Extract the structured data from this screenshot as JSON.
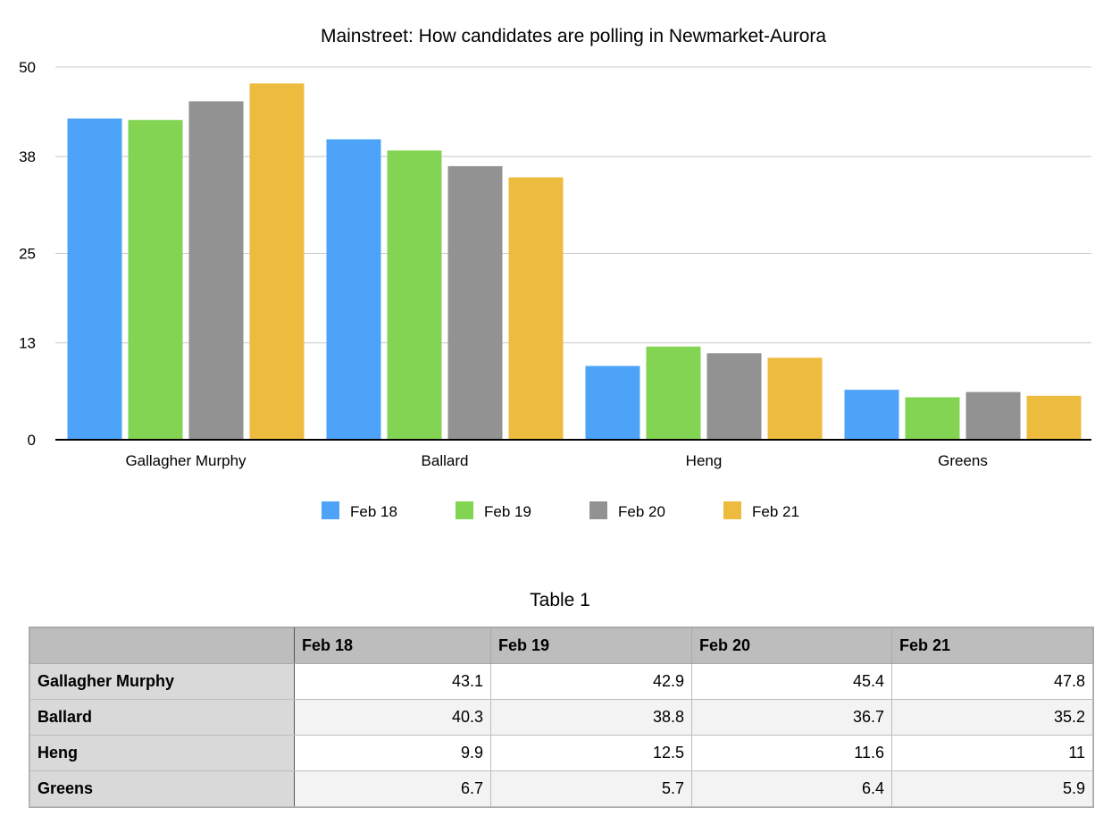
{
  "chart_data": {
    "type": "bar",
    "title": "Mainstreet: How candidates are polling in Newmarket-Aurora",
    "categories": [
      "Gallagher Murphy",
      "Ballard",
      "Heng",
      "Greens"
    ],
    "series": [
      {
        "name": "Feb 18",
        "color": "#4ca3f8",
        "values": [
          43.1,
          40.3,
          9.9,
          6.7
        ]
      },
      {
        "name": "Feb 19",
        "color": "#82d452",
        "values": [
          42.9,
          38.8,
          12.5,
          5.7
        ]
      },
      {
        "name": "Feb 20",
        "color": "#929292",
        "values": [
          45.4,
          36.7,
          11.6,
          6.4
        ]
      },
      {
        "name": "Feb 21",
        "color": "#edbc3e",
        "values": [
          47.8,
          35.2,
          11,
          5.9
        ]
      }
    ],
    "ylim": [
      0,
      50
    ],
    "yticks": [
      "0",
      "13",
      "25",
      "38",
      "50"
    ],
    "grid": true,
    "legend": "bottom-center"
  },
  "table": {
    "caption": "Table 1",
    "header": [
      "",
      "Feb 18",
      "Feb 19",
      "Feb 20",
      "Feb 21"
    ],
    "rows": [
      {
        "label": "Gallagher Murphy",
        "cells": [
          "43.1",
          "42.9",
          "45.4",
          "47.8"
        ]
      },
      {
        "label": "Ballard",
        "cells": [
          "40.3",
          "38.8",
          "36.7",
          "35.2"
        ]
      },
      {
        "label": "Heng",
        "cells": [
          "9.9",
          "12.5",
          "11.6",
          "11"
        ]
      },
      {
        "label": "Greens",
        "cells": [
          "6.7",
          "5.7",
          "6.4",
          "5.9"
        ]
      }
    ]
  }
}
